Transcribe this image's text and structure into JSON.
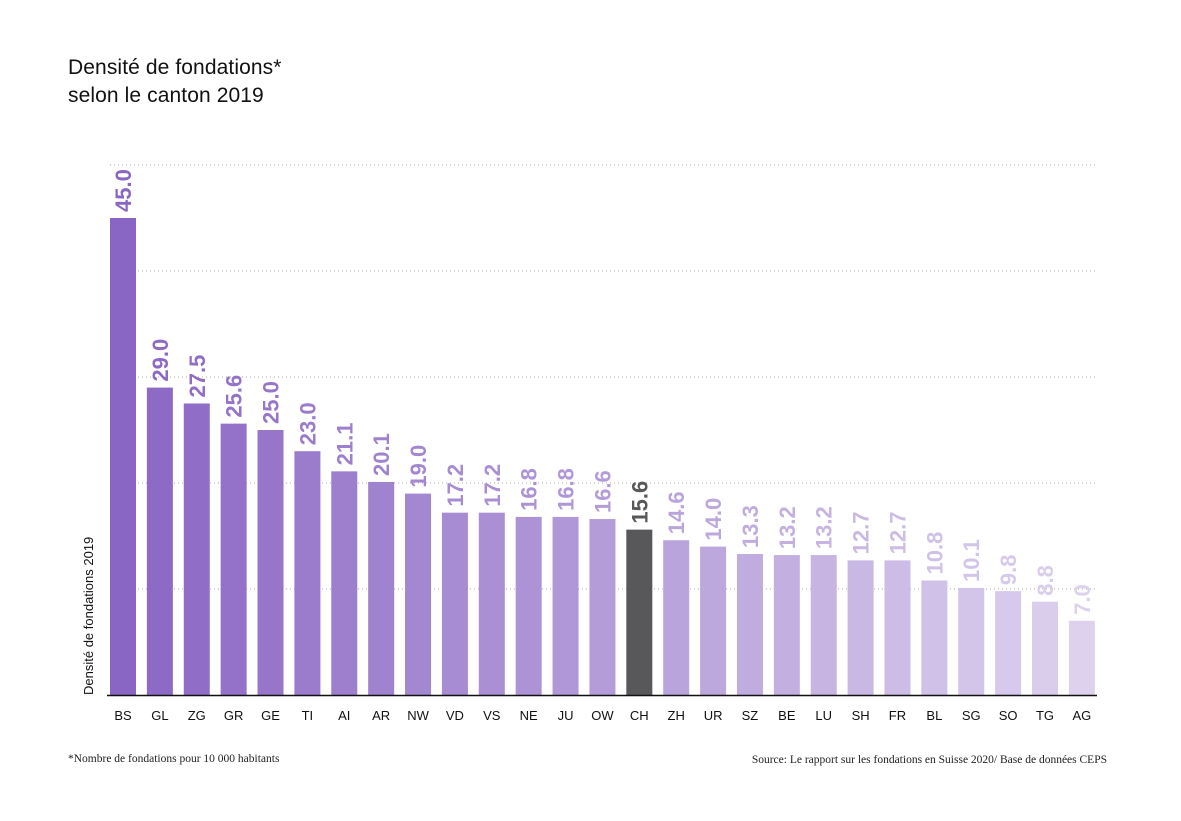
{
  "chart_data": {
    "type": "bar",
    "title_line1": "Densité de fondations*",
    "title_line2": "selon le canton 2019",
    "ylabel": "Densité de fondations 2019",
    "xlabel": "",
    "ylim": [
      0,
      50
    ],
    "yticks": [
      0,
      10,
      20,
      30,
      40,
      50
    ],
    "grid": true,
    "categories": [
      "BS",
      "GL",
      "ZG",
      "GR",
      "GE",
      "TI",
      "AI",
      "AR",
      "NW",
      "VD",
      "VS",
      "NE",
      "JU",
      "OW",
      "CH",
      "ZH",
      "UR",
      "SZ",
      "BE",
      "LU",
      "SH",
      "FR",
      "BL",
      "SG",
      "SO",
      "TG",
      "AG"
    ],
    "values": [
      45.0,
      29.0,
      27.5,
      25.6,
      25.0,
      23.0,
      21.1,
      20.1,
      19.0,
      17.2,
      17.2,
      16.8,
      16.8,
      16.6,
      15.6,
      14.6,
      14.0,
      13.3,
      13.2,
      13.2,
      12.7,
      12.7,
      10.8,
      10.1,
      9.8,
      8.8,
      7.0
    ],
    "value_labels": [
      "45.0",
      "29.0",
      "27.5",
      "25.6",
      "25.0",
      "23.0",
      "21.1",
      "20.1",
      "19.0",
      "17.2",
      "17.2",
      "16.8",
      "16.8",
      "16.6",
      "15.6",
      "14.6",
      "14.0",
      "13.3",
      "13.2",
      "13.2",
      "12.7",
      "12.7",
      "10.8",
      "10.1",
      "9.8",
      "8.8",
      "7.0"
    ],
    "colors": {
      "gradient_start": "#8a66c4",
      "gradient_end": "#ddd1ee",
      "highlight": "#58585a",
      "highlight_category": "CH",
      "axis": "#111111",
      "grid": "#aaaaaa"
    }
  },
  "footnote": "*Nombre de fondations pour 10 000 habitants",
  "source": "Source: Le rapport sur les fondations en Suisse 2020/ Base de données CEPS"
}
